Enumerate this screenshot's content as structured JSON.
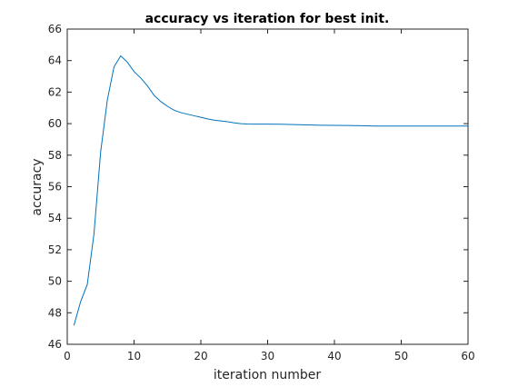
{
  "chart_data": {
    "type": "line",
    "title": "accuracy vs iteration for best init.",
    "xlabel": "iteration number",
    "ylabel": "accuracy",
    "xlim": [
      0,
      60
    ],
    "ylim": [
      46,
      66
    ],
    "xticks": [
      "0",
      "10",
      "20",
      "30",
      "40",
      "50",
      "60"
    ],
    "yticks": [
      "46",
      "48",
      "50",
      "52",
      "54",
      "56",
      "58",
      "60",
      "62",
      "64",
      "66"
    ],
    "grid": false,
    "box": true,
    "series_color": "#0072bd",
    "x": [
      1,
      2,
      3,
      4,
      5,
      6,
      7,
      8,
      9,
      10,
      11,
      12,
      13,
      14,
      15,
      16,
      17,
      18,
      19,
      20,
      21,
      22,
      23,
      24,
      25,
      26,
      27,
      28,
      29,
      30,
      32,
      34,
      36,
      38,
      40,
      42,
      44,
      46,
      48,
      50,
      52,
      54,
      56,
      58,
      60
    ],
    "y": [
      47.2,
      48.7,
      49.8,
      53.0,
      58.2,
      61.5,
      63.6,
      64.3,
      63.9,
      63.3,
      62.9,
      62.4,
      61.8,
      61.4,
      61.1,
      60.85,
      60.7,
      60.6,
      60.5,
      60.4,
      60.3,
      60.22,
      60.17,
      60.12,
      60.05,
      60.0,
      59.98,
      59.97,
      59.97,
      59.97,
      59.96,
      59.94,
      59.92,
      59.9,
      59.89,
      59.88,
      59.87,
      59.85,
      59.85,
      59.85,
      59.85,
      59.85,
      59.85,
      59.85,
      59.85
    ]
  }
}
